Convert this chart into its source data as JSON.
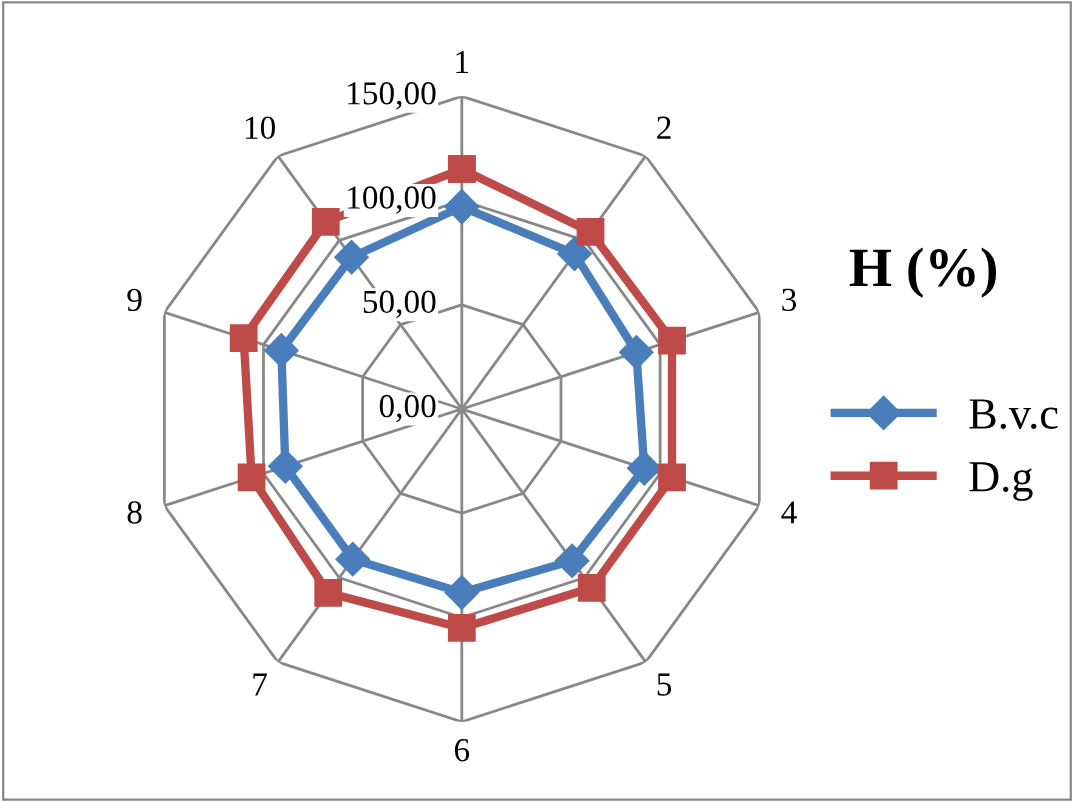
{
  "chart_data": {
    "type": "radar",
    "title": "H (%)",
    "categories": [
      "1",
      "2",
      "3",
      "4",
      "5",
      "6",
      "7",
      "8",
      "9",
      "10"
    ],
    "ylim": [
      0,
      150
    ],
    "yticks": [
      {
        "value": 0,
        "label": "0,00"
      },
      {
        "value": 50,
        "label": "50,00"
      },
      {
        "value": 100,
        "label": "100,00"
      },
      {
        "value": 150,
        "label": "150,00"
      }
    ],
    "grid": true,
    "legend": "right",
    "series": [
      {
        "name": "B.v.c",
        "color": "#4a7ebb",
        "marker": "diamond",
        "values": [
          97,
          92,
          88,
          92,
          90,
          88,
          89,
          89,
          91,
          90
        ]
      },
      {
        "name": "D.g",
        "color": "#be4b48",
        "marker": "square",
        "values": [
          115,
          105,
          106,
          106,
          106,
          105,
          109,
          106,
          110,
          111
        ]
      }
    ]
  }
}
